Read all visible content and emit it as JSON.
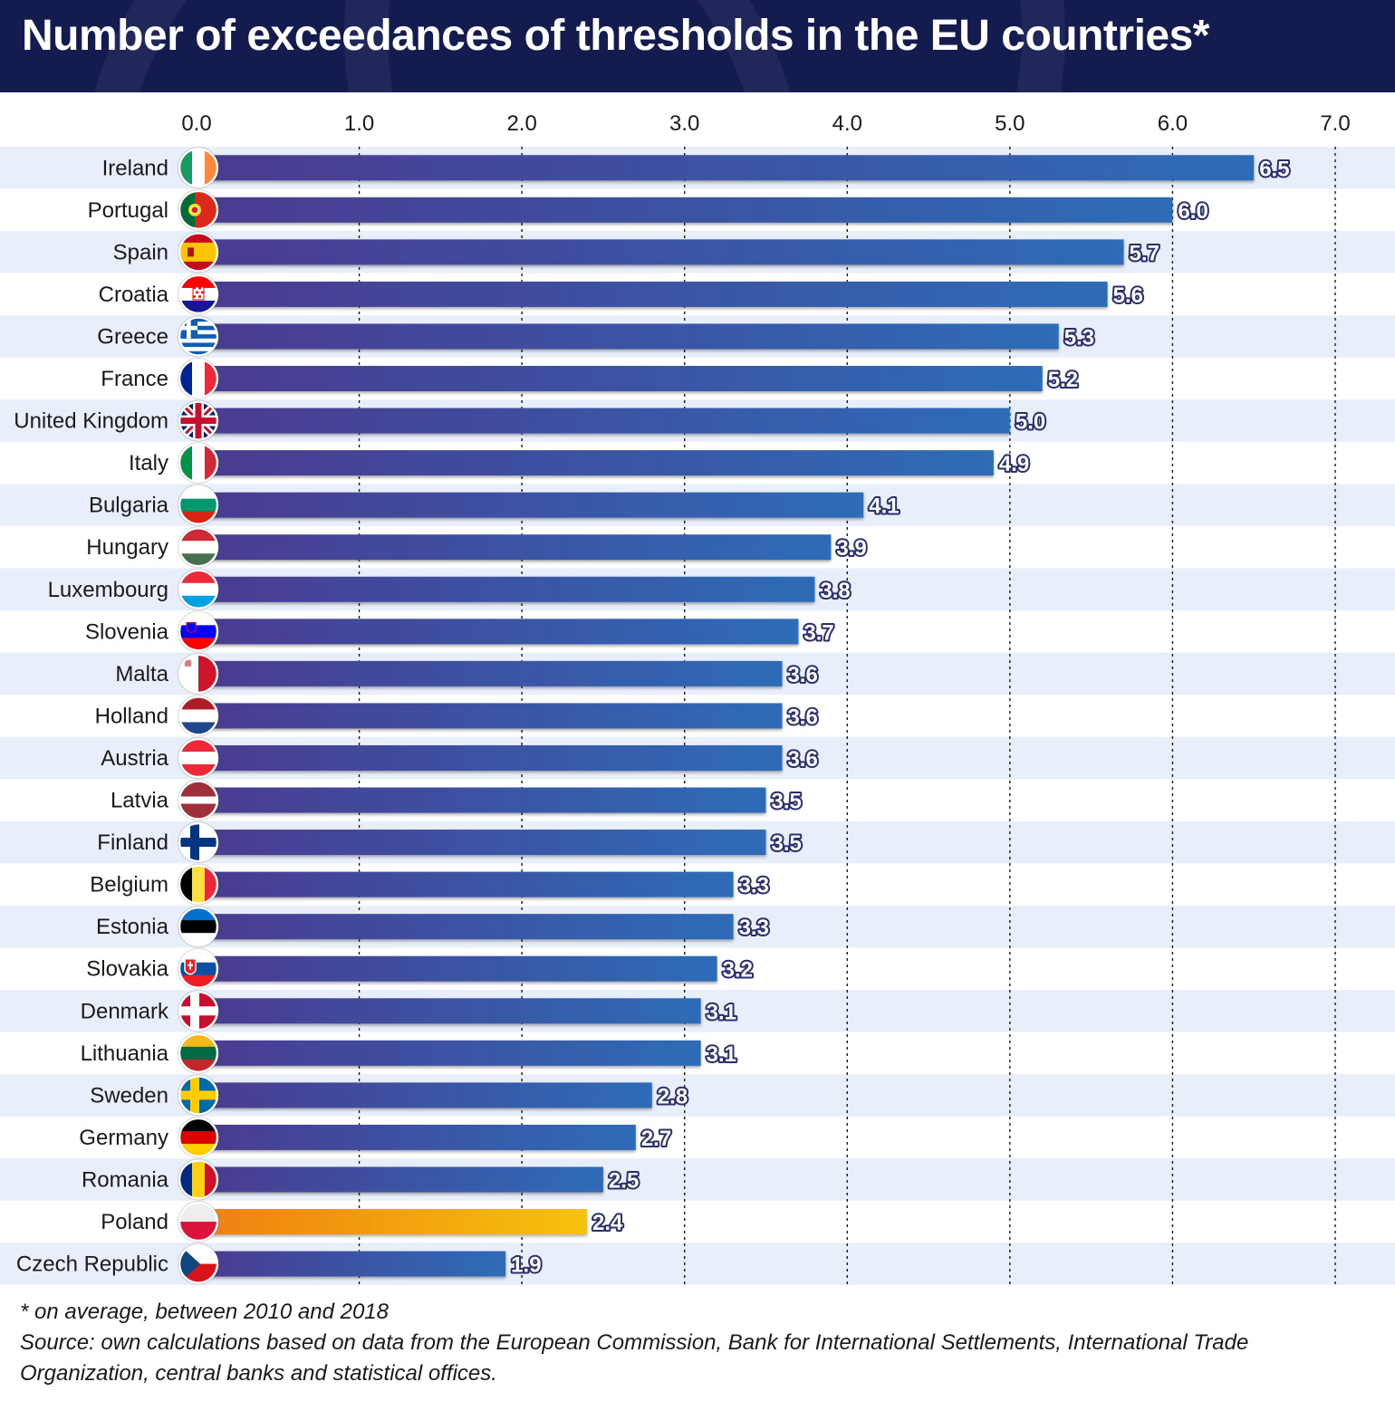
{
  "title": "Number of exceedances of thresholds in the EU countries*",
  "footnote": {
    "note": "* on average, between 2010 and 2018",
    "source": "Source: own calculations based on data from the European Commission, Bank for International Settlements, International Trade Organization, central banks and statistical offices."
  },
  "colors": {
    "header_bg": "#141b4f",
    "bar_start": "#4a3a90",
    "bar_end": "#2d6cb7",
    "highlight_start": "#ee7f12",
    "highlight_end": "#f6c20e",
    "row_band": "#e8eefa",
    "label_outline": "#2a2f6b"
  },
  "chart_data": {
    "type": "bar",
    "orientation": "horizontal",
    "tick_labels": [
      "0.0",
      "1.0",
      "2.0",
      "3.0",
      "4.0",
      "5.0",
      "6.0",
      "7.0"
    ],
    "xlim": [
      0,
      7
    ],
    "grid": "vertical dashed",
    "highlight": "Poland",
    "categories": [
      "Ireland",
      "Portugal",
      "Spain",
      "Croatia",
      "Greece",
      "France",
      "United Kingdom",
      "Italy",
      "Bulgaria",
      "Hungary",
      "Luxembourg",
      "Slovenia",
      "Malta",
      "Holland",
      "Austria",
      "Latvia",
      "Finland",
      "Belgium",
      "Estonia",
      "Slovakia",
      "Denmark",
      "Lithuania",
      "Sweden",
      "Germany",
      "Romania",
      "Poland",
      "Czech Republic"
    ],
    "values": [
      6.5,
      6.0,
      5.7,
      5.6,
      5.3,
      5.2,
      5.0,
      4.9,
      4.1,
      3.9,
      3.8,
      3.7,
      3.6,
      3.6,
      3.6,
      3.5,
      3.5,
      3.3,
      3.3,
      3.2,
      3.1,
      3.1,
      2.8,
      2.7,
      2.5,
      2.4,
      1.9
    ],
    "value_labels": [
      "6.5",
      "6.0",
      "5.7",
      "5.6",
      "5.3",
      "5.2",
      "5.0",
      "4.9",
      "4.1",
      "3.9",
      "3.8",
      "3.7",
      "3.6",
      "3.6",
      "3.6",
      "3.5",
      "3.5",
      "3.3",
      "3.3",
      "3.2",
      "3.1",
      "3.1",
      "2.8",
      "2.7",
      "2.5",
      "2.4",
      "1.9"
    ],
    "flag_icons": [
      "flag-ireland-icon",
      "flag-portugal-icon",
      "flag-spain-icon",
      "flag-croatia-icon",
      "flag-greece-icon",
      "flag-france-icon",
      "flag-united-kingdom-icon",
      "flag-italy-icon",
      "flag-bulgaria-icon",
      "flag-hungary-icon",
      "flag-luxembourg-icon",
      "flag-slovenia-icon",
      "flag-malta-icon",
      "flag-holland-icon",
      "flag-austria-icon",
      "flag-latvia-icon",
      "flag-finland-icon",
      "flag-belgium-icon",
      "flag-estonia-icon",
      "flag-slovakia-icon",
      "flag-denmark-icon",
      "flag-lithuania-icon",
      "flag-sweden-icon",
      "flag-germany-icon",
      "flag-romania-icon",
      "flag-poland-icon",
      "flag-czech-republic-icon"
    ]
  }
}
